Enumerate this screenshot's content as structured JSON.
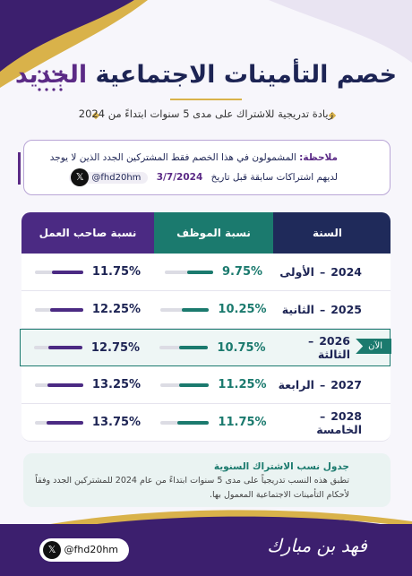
{
  "header": {
    "title_main": "خصم التأمينات الاجتماعية",
    "title_highlight": "الجديد",
    "subtitle": "زيادة تدريجية للاشتراك على مدى 5 سنوات ابتداءً من 2024"
  },
  "note": {
    "label": "ملاحظة:",
    "text": "المشمولون في هذا الخصم فقط المشتركين الجدد الذين لا يوجد لديهم اشتراكات سابقة قبل تاريخ",
    "date": "3/7/2024",
    "handle": "@fhd20hm"
  },
  "table": {
    "headers": [
      "السنة",
      "نسبة الموظف",
      "نسبة صاحب العمل"
    ],
    "separator": "–",
    "current_badge": "الآن",
    "current_row": 2,
    "rows": [
      [
        "2024",
        "الأولى",
        "9.75%",
        "11.75%"
      ],
      [
        "2025",
        "الثانية",
        "10.25%",
        "12.25%"
      ],
      [
        "2026",
        "الثالثة",
        "10.75%",
        "12.75%"
      ],
      [
        "2027",
        "الرابعة",
        "11.25%",
        "13.25%"
      ],
      [
        "2028",
        "الخامسة",
        "11.75%",
        "13.75%"
      ]
    ]
  },
  "info": {
    "title": "جدول نسب الاشتراك السنوية",
    "text": "تطبق هذه النسب تدريجياً على مدى 5 سنوات ابتداءً من عام 2024 للمشتركين الجدد وفقاً لأحكام التأمينات الاجتماعية المعمول بها."
  },
  "footer": {
    "author": "فهد بن مبارك",
    "handle": "@fhd20hm"
  }
}
